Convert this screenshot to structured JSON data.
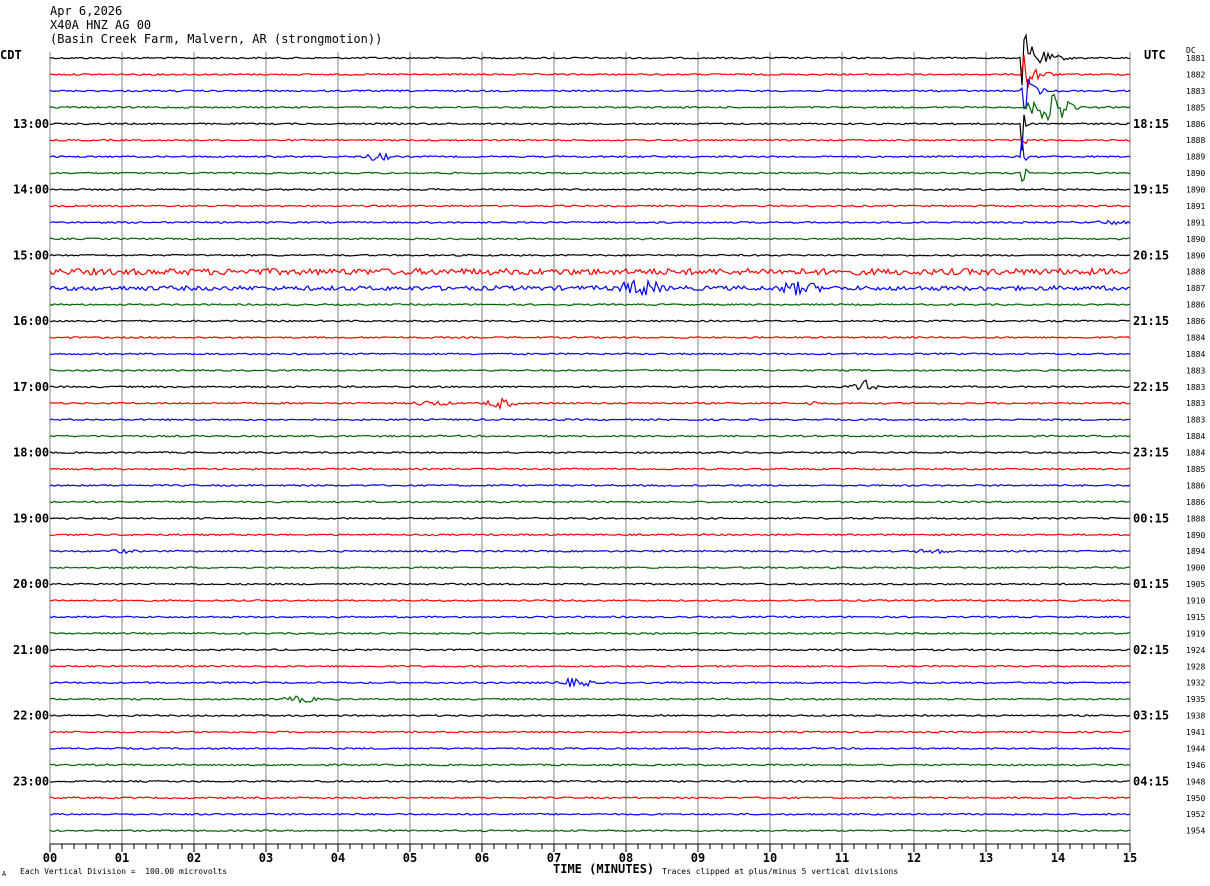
{
  "header": {
    "date": "Apr 6,2026",
    "station": "X40A HNZ AG 00",
    "location": "(Basin Creek Farm, Malvern, AR (strongmotion))"
  },
  "left_tz": "CDT",
  "right_tz": "UTC",
  "dc_label": "DC",
  "footer": {
    "scale_note": "Each Vertical Division =  100.00 microvolts",
    "clip_note": "Traces clipped at plus/minus 5 vertical divisions",
    "mark": "A"
  },
  "colors": {
    "black": "#000000",
    "red": "#ff0000",
    "blue": "#0000ff",
    "green": "#006400",
    "grid": "#808080"
  },
  "chart_data": {
    "type": "line",
    "title": "X40A HNZ AG 00",
    "xlabel": "TIME (MINUTES)",
    "xlim": [
      0,
      15
    ],
    "x_ticks": [
      "00",
      "01",
      "02",
      "03",
      "04",
      "05",
      "06",
      "07",
      "08",
      "09",
      "10",
      "11",
      "12",
      "13",
      "14",
      "15"
    ],
    "left_hour_labels": [
      "13:00",
      "14:00",
      "15:00",
      "16:00",
      "17:00",
      "18:00",
      "19:00",
      "20:00",
      "21:00",
      "22:00",
      "23:00"
    ],
    "right_hour_labels": [
      "18:15",
      "19:15",
      "20:15",
      "21:15",
      "22:15",
      "23:15",
      "00:15",
      "01:15",
      "02:15",
      "03:15",
      "04:15"
    ],
    "trace_colors": [
      "black",
      "red",
      "blue",
      "green"
    ],
    "dc_values": [
      "1881",
      "1882",
      "1883",
      "1885",
      "1886",
      "1888",
      "1889",
      "1890",
      "1890",
      "1891",
      "1891",
      "1890",
      "1890",
      "1888",
      "1887",
      "1886",
      "1886",
      "1884",
      "1884",
      "1883",
      "1883",
      "1883",
      "1883",
      "1884",
      "1884",
      "1885",
      "1886",
      "1886",
      "1888",
      "1890",
      "1894",
      "1900",
      "1905",
      "1910",
      "1915",
      "1919",
      "1924",
      "1928",
      "1932",
      "1935",
      "1938",
      "1941",
      "1944",
      "1946",
      "1948",
      "1950",
      "1952",
      "1954"
    ],
    "events": [
      {
        "trace": 0,
        "start_min": 13.5,
        "end_min": 14.2,
        "amplitude": 5,
        "note": "clipped"
      },
      {
        "trace": 1,
        "start_min": 13.5,
        "end_min": 14.0,
        "amplitude": 5
      },
      {
        "trace": 2,
        "start_min": 13.5,
        "end_min": 13.9,
        "amplitude": 5
      },
      {
        "trace": 3,
        "start_min": 13.5,
        "end_min": 14.3,
        "amplitude": 2
      },
      {
        "trace": 6,
        "start_min": 4.3,
        "end_min": 4.8,
        "amplitude": 0.5
      },
      {
        "trace": 4,
        "start_min": 13.5,
        "end_min": 13.6,
        "amplitude": 5
      },
      {
        "trace": 5,
        "start_min": 13.5,
        "end_min": 13.6,
        "amplitude": 5
      },
      {
        "trace": 6,
        "start_min": 13.5,
        "end_min": 13.6,
        "amplitude": 5
      },
      {
        "trace": 7,
        "start_min": 13.5,
        "end_min": 13.6,
        "amplitude": 5
      },
      {
        "trace": 10,
        "start_min": 14.5,
        "end_min": 15.0,
        "amplitude": 0.25
      },
      {
        "trace": 14,
        "start_min": 7.8,
        "end_min": 8.6,
        "amplitude": 1.3
      },
      {
        "trace": 14,
        "start_min": 10.0,
        "end_min": 10.8,
        "amplitude": 1.0
      },
      {
        "trace": 21,
        "start_min": 6.0,
        "end_min": 6.5,
        "amplitude": 0.7
      },
      {
        "trace": 20,
        "start_min": 11.1,
        "end_min": 11.5,
        "amplitude": 1.0
      },
      {
        "trace": 21,
        "start_min": 5.0,
        "end_min": 5.6,
        "amplitude": 0.3
      },
      {
        "trace": 21,
        "start_min": 10.5,
        "end_min": 10.7,
        "amplitude": 0.3
      },
      {
        "trace": 30,
        "start_min": 0.8,
        "end_min": 1.2,
        "amplitude": 0.2
      },
      {
        "trace": 30,
        "start_min": 12.0,
        "end_min": 12.5,
        "amplitude": 0.3
      },
      {
        "trace": 38,
        "start_min": 7.0,
        "end_min": 7.6,
        "amplitude": 0.6
      },
      {
        "trace": 39,
        "start_min": 3.2,
        "end_min": 3.8,
        "amplitude": 0.4
      }
    ],
    "noisy_traces": [
      {
        "trace": 13,
        "amplitude": 0.35
      },
      {
        "trace": 14,
        "amplitude": 0.25
      }
    ]
  }
}
